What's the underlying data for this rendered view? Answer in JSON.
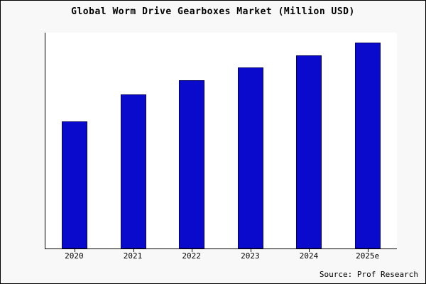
{
  "title": "Global Worm Drive Gearboxes Market (Million USD)",
  "source": "Source: Prof Research",
  "colors": {
    "bar_fill": "#0a0acd",
    "bar_border": "#000066",
    "background": "#f8f8f8",
    "plot_background": "#ffffff"
  },
  "chart_data": {
    "type": "bar",
    "categories": [
      "2020",
      "2021",
      "2022",
      "2023",
      "2024",
      "2025e"
    ],
    "values": [
      62,
      75,
      82,
      88,
      94,
      100
    ],
    "title": "Global Worm Drive Gearboxes Market (Million USD)",
    "xlabel": "",
    "ylabel": "",
    "ylim": [
      0,
      105
    ],
    "grid": false,
    "legend": false,
    "source": "Source: Prof Research"
  }
}
